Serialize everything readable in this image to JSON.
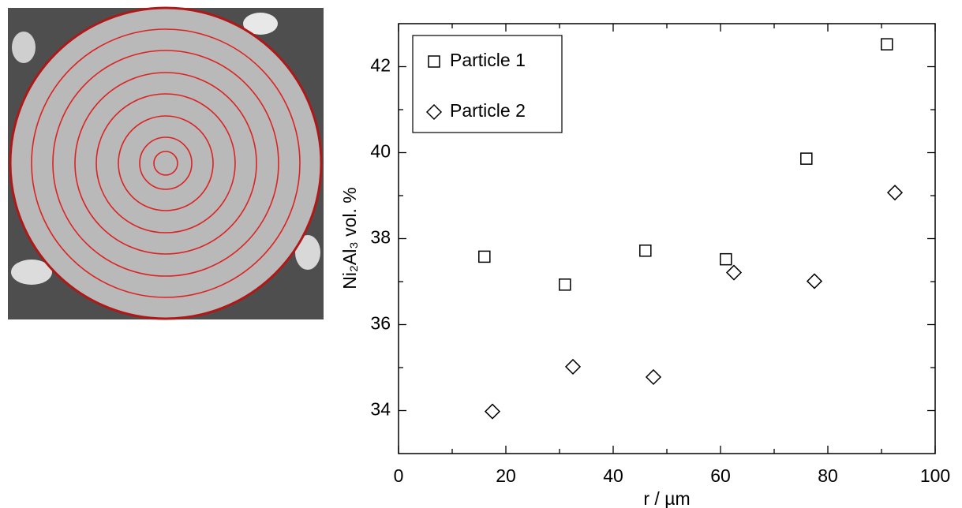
{
  "chart_data": {
    "type": "scatter",
    "xlabel": "r / µm",
    "ylabel": "Ni₂Al₃ vol. %",
    "xlim": [
      0,
      100
    ],
    "xticks": [
      0,
      20,
      40,
      60,
      80,
      100
    ],
    "xminor": [
      10,
      30,
      50,
      70,
      90
    ],
    "ylim": [
      33,
      43
    ],
    "yticks": [
      34,
      36,
      38,
      40,
      42
    ],
    "yminor": [
      35,
      37,
      39,
      41
    ],
    "legend": "upper left",
    "series": [
      {
        "name": "Particle 1",
        "color": "#000000",
        "marker": "square",
        "x": [
          16,
          31,
          46,
          61,
          76,
          91
        ],
        "values": [
          37.58,
          36.93,
          37.72,
          37.52,
          39.86,
          42.52
        ]
      },
      {
        "name": "Particle 2",
        "color": "#000000",
        "marker": "diamond",
        "x": [
          17.5,
          32.5,
          47.5,
          62.5,
          77.5,
          92.5
        ],
        "values": [
          33.98,
          35.02,
          34.78,
          37.21,
          37.01,
          39.07
        ]
      }
    ]
  }
}
